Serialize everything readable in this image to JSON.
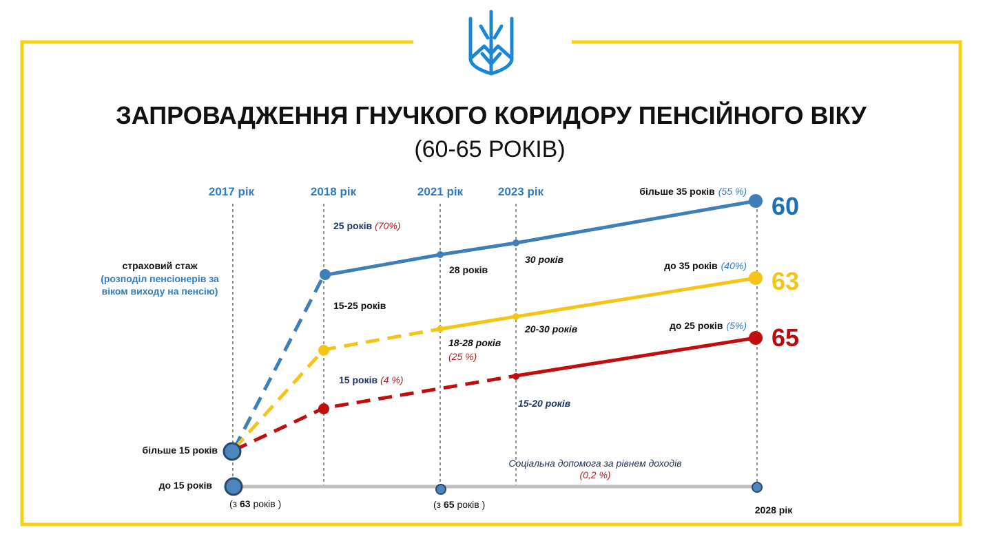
{
  "title": "ЗАПРОВАДЖЕННЯ ГНУЧКОГО КОРИДОРУ ПЕНСІЙНОГО ВІКУ",
  "subtitle": "(60-65 РОКІВ)",
  "colors": {
    "frame": "#f5d11a",
    "blue": "#3f7fb7",
    "yellow": "#f4c518",
    "red": "#c00d0d",
    "gray": "#c0c0c0",
    "year_text": "#2e7cc2",
    "navy": "#1f3566",
    "pct_red": "#b01f1f"
  },
  "years": {
    "y2017": "2017 рік",
    "y2018": "2018 рік",
    "y2021": "2021 рік",
    "y2023": "2023 рік",
    "y2028": "2028 рік"
  },
  "left_legend": {
    "line1": "страховий стаж",
    "line2": "(розподіл пенсіонерів за",
    "line3": "віком виходу на пенсію)"
  },
  "start_labels": {
    "more15": "більше 15 років",
    "upto15": "до 15 років"
  },
  "bottom_notes": {
    "age63_open": "(з ",
    "age63_num": "63",
    "age63_rest": " років )",
    "age65_open": "(з ",
    "age65_num": "65",
    "age65_rest": " років )"
  },
  "series": {
    "blue": {
      "end_age": "60",
      "end_label": "більше 35 років",
      "end_pct": "(55 %)",
      "l2018": "25 років",
      "l2018_pct": "(70%)",
      "l2021": "28 років",
      "l2023": "30 років"
    },
    "yellow": {
      "end_age": "63",
      "end_label": "до 35 років",
      "end_pct": "(40%)",
      "l2018": "15-25 років",
      "l2021": "18-28 років",
      "l2021_pct": "(25 %)",
      "l2023": "20-30 років"
    },
    "red": {
      "end_age": "65",
      "end_label": "до 25 років",
      "end_pct": "(5%)",
      "l2018": "15 років",
      "l2018_pct": "(4 %)",
      "l2023": "15-20 років"
    }
  },
  "social": {
    "line1": "Соціальна допомога за рівнем доходів",
    "line2": "(0,2 %)"
  }
}
